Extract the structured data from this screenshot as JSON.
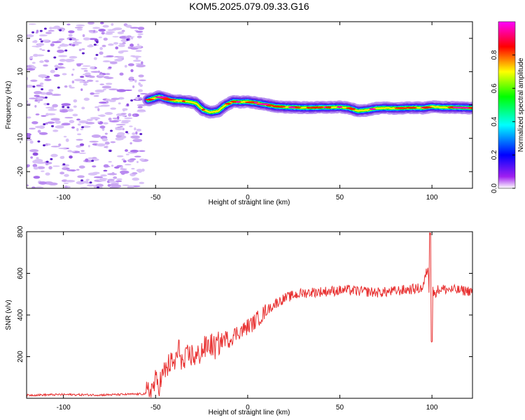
{
  "title": "KOM5.2025.079.09.33.G16",
  "chart_data": [
    {
      "type": "heatmap",
      "xlabel": "Height of straight line (km)",
      "ylabel": "Frequency (Hz)",
      "xlim": [
        -120,
        122
      ],
      "ylim": [
        -25,
        25
      ],
      "xticks": [
        -100,
        -50,
        0,
        50,
        100
      ],
      "yticks": [
        -20,
        -10,
        0,
        10,
        20
      ],
      "grid": false,
      "colorbar": {
        "label": "Normalized spectral amplitude",
        "range": [
          0,
          1
        ],
        "ticks": [
          "0.0",
          "0.2",
          "0.4",
          "0.6",
          "0.8"
        ],
        "colors": [
          "#ffffff",
          "#a020f0",
          "#0000ff",
          "#00ffff",
          "#00ff00",
          "#ffff00",
          "#ff0000",
          "#ff00ff"
        ]
      },
      "ridge": {
        "x": [
          -54,
          -48,
          -44,
          -40,
          -36,
          -32,
          -28,
          -24,
          -20,
          -16,
          -12,
          -8,
          -4,
          0,
          5,
          10,
          15,
          20,
          25,
          30,
          35,
          40,
          45,
          50,
          55,
          60,
          65,
          70,
          75,
          80,
          85,
          90,
          95,
          100,
          105,
          110,
          115,
          122
        ],
        "freq": [
          1.5,
          2.5,
          1.8,
          1.3,
          1.2,
          1.0,
          0.5,
          -1.5,
          -2.2,
          -1.8,
          0.0,
          1.0,
          0.9,
          1.0,
          0.6,
          0.1,
          -0.4,
          -0.6,
          -0.7,
          -0.8,
          -0.8,
          -0.7,
          -0.7,
          -0.6,
          -0.9,
          -1.8,
          -1.5,
          -1.0,
          -0.9,
          -1.0,
          -0.9,
          -0.8,
          -0.9,
          -0.5,
          -0.7,
          -0.7,
          -0.8,
          -0.9
        ]
      }
    },
    {
      "type": "line",
      "xlabel": "Height of straight line (km)",
      "ylabel": "SNR (v/v)",
      "xlim": [
        -120,
        122
      ],
      "ylim": [
        0,
        800
      ],
      "xticks": [
        -100,
        -50,
        0,
        50,
        100
      ],
      "yticks": [
        200,
        400,
        600,
        800
      ],
      "grid": false,
      "series": [
        {
          "color": "#e83030",
          "x": [
            -120,
            -100,
            -80,
            -60,
            -55,
            -52,
            -50,
            -48,
            -45,
            -42,
            -40,
            -37,
            -35,
            -33,
            -30,
            -28,
            -25,
            -22,
            -20,
            -18,
            -15,
            -12,
            -10,
            -8,
            -5,
            -2,
            0,
            3,
            5,
            8,
            10,
            13,
            15,
            18,
            20,
            25,
            30,
            35,
            40,
            45,
            50,
            55,
            60,
            65,
            70,
            75,
            80,
            85,
            90,
            95,
            98,
            99,
            100,
            101,
            103,
            105,
            110,
            115,
            122
          ],
          "y": [
            15,
            18,
            16,
            20,
            22,
            45,
            80,
            70,
            130,
            170,
            160,
            240,
            150,
            200,
            210,
            190,
            230,
            250,
            260,
            240,
            270,
            290,
            280,
            300,
            320,
            330,
            345,
            360,
            380,
            400,
            420,
            440,
            455,
            470,
            480,
            495,
            505,
            510,
            512,
            515,
            518,
            520,
            515,
            512,
            508,
            510,
            515,
            520,
            525,
            530,
            640,
            280,
            540,
            500,
            520,
            525,
            522,
            518,
            515
          ],
          "peaks_annotation": "spike near x=99 (~800 and ~260)"
        }
      ]
    }
  ]
}
